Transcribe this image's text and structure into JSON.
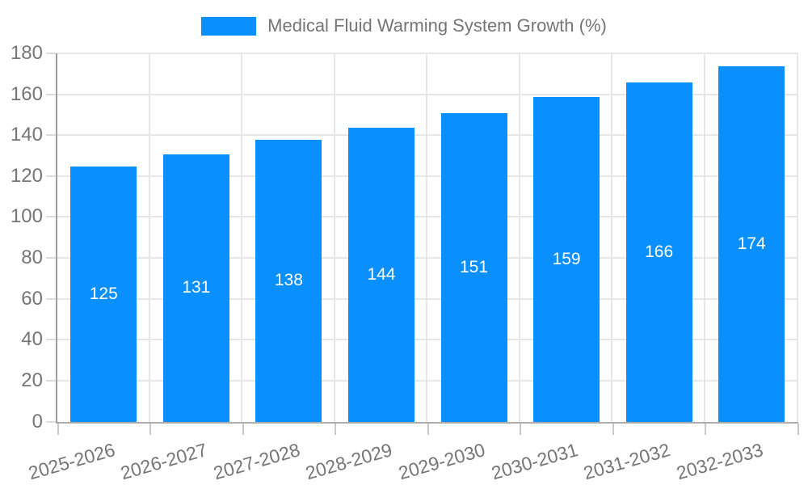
{
  "legend": {
    "position": "top-center",
    "items": [
      {
        "label": "Medical Fluid Warming System Growth (%)",
        "color": "#0a8fff"
      }
    ]
  },
  "chart_data": {
    "type": "bar",
    "title": "Medical Fluid Warming System Growth (%)",
    "series_name": "Medical Fluid Warming System Growth (%)",
    "categories": [
      "2025-2026",
      "2026-2027",
      "2027-2028",
      "2028-2029",
      "2029-2030",
      "2030-2031",
      "2031-2032",
      "2032-2033"
    ],
    "values": [
      125,
      131,
      138,
      144,
      151,
      159,
      166,
      174
    ],
    "xlabel": "",
    "ylabel": "",
    "ylim": [
      0,
      180
    ],
    "yticks": [
      0,
      20,
      40,
      60,
      80,
      100,
      120,
      140,
      160,
      180
    ],
    "ytick_step": 20,
    "grid": true,
    "legend_position": "top",
    "x_tick_rotation_deg": -16,
    "bar_value_labels_shown": true,
    "bar_value_label_position": "middle-of-bar"
  },
  "style": {
    "bar": "#0a8fff",
    "bar_label": "#ffffff",
    "text": "#757575",
    "grid": "#e6e6e6",
    "axis_line_y": "#9c9c9c",
    "axis_line_x": "#adadad",
    "tick_y": "#dcdcdc",
    "tick_x": "#c8c8c8",
    "background": "#ffffff"
  }
}
